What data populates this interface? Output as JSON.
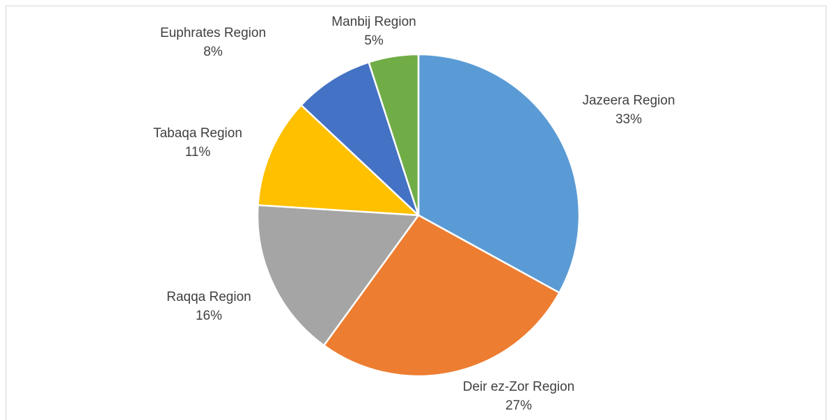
{
  "chart_data": {
    "type": "pie",
    "categories": [
      "Jazeera Region",
      "Deir ez-Zor Region",
      "Raqqa Region",
      "Tabaqa Region",
      "Euphrates Region",
      "Manbij Region"
    ],
    "values": [
      33,
      27,
      16,
      11,
      8,
      5
    ],
    "value_labels": [
      "33%",
      "27%",
      "16%",
      "11%",
      "8%",
      "5%"
    ],
    "colors": [
      "#5b9bd5",
      "#ed7d31",
      "#a5a5a5",
      "#ffc000",
      "#4472c4",
      "#70ad47"
    ]
  }
}
